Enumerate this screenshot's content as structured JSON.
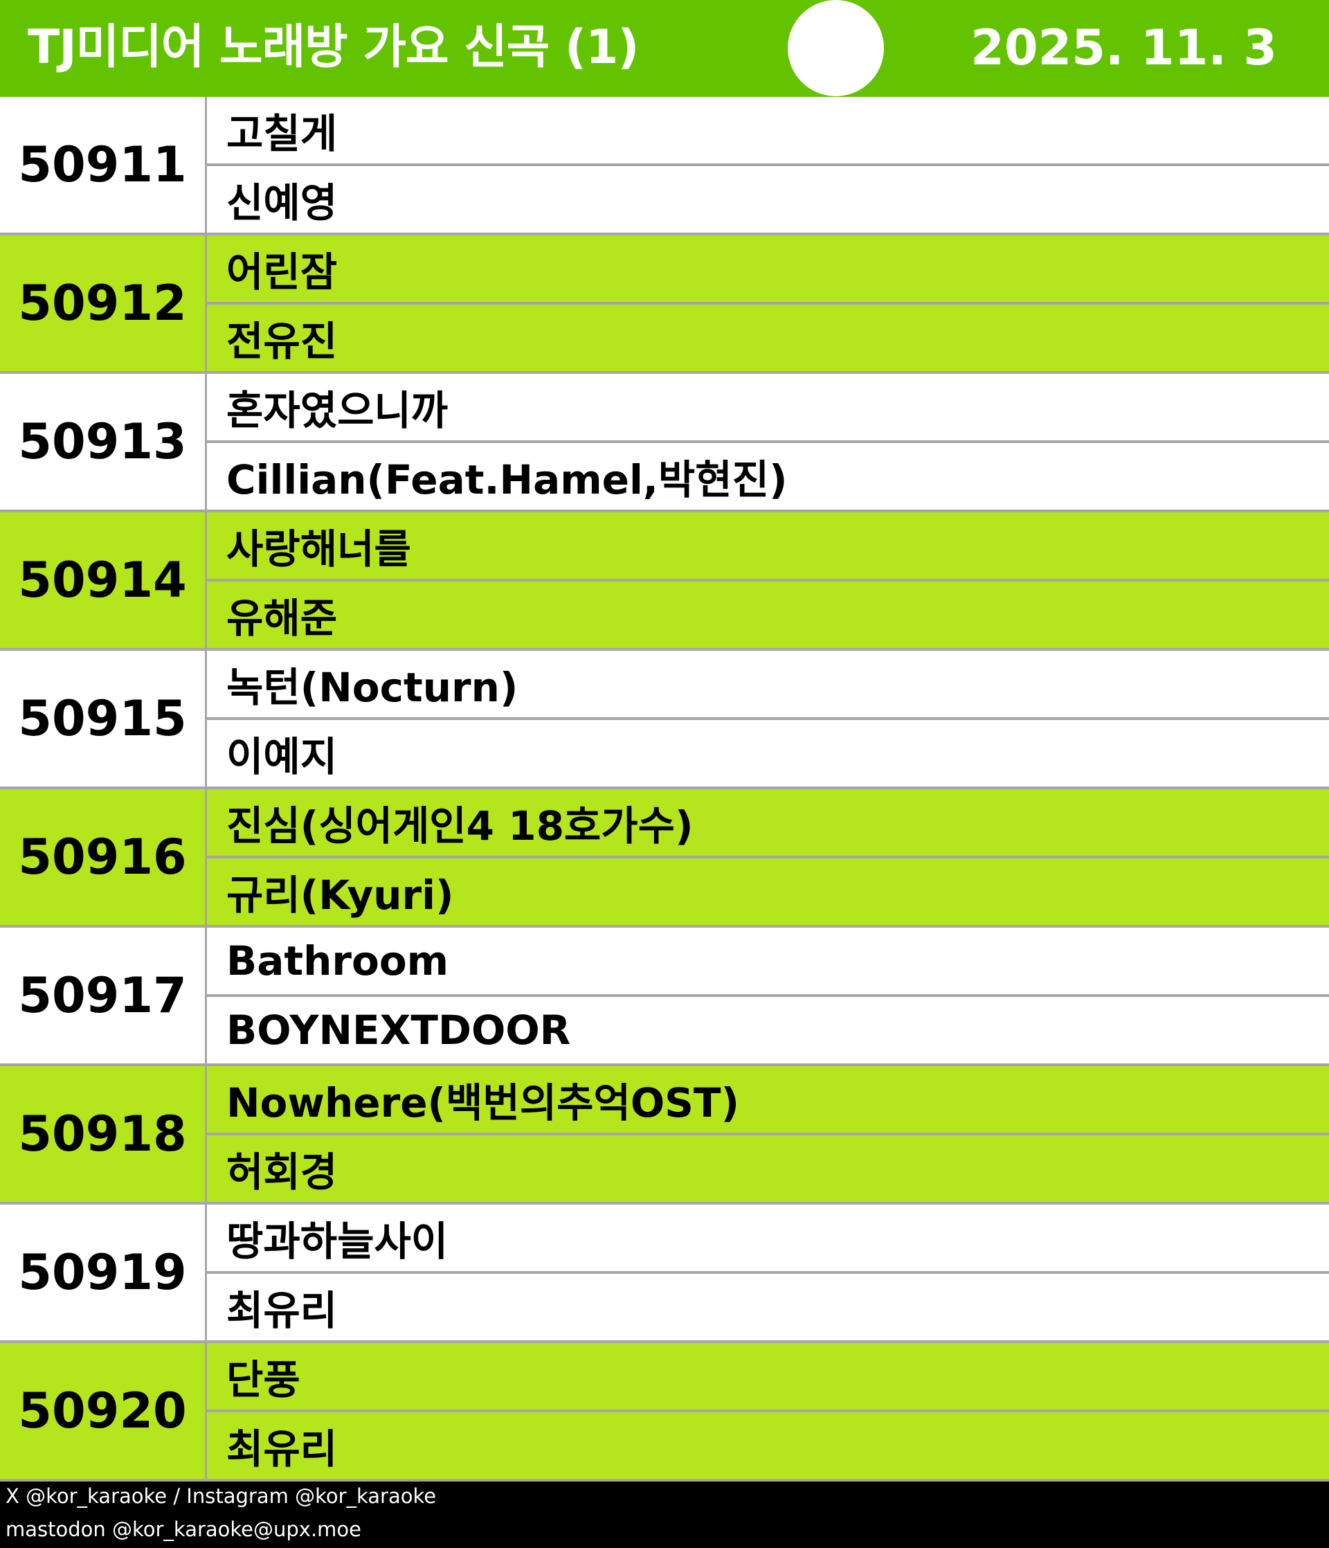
{
  "header": {
    "title": "TJ미디어 노래방 가요 신곡 (1)",
    "date": "2025. 11. 3"
  },
  "colors": {
    "header": "#64c300",
    "highlight": "#b5e61d",
    "divider": "#a6a6a6",
    "footer": "#000000"
  },
  "songs": [
    {
      "number": "50911",
      "title": "고칠게",
      "artist": "신예영"
    },
    {
      "number": "50912",
      "title": "어린잠",
      "artist": "전유진"
    },
    {
      "number": "50913",
      "title": "혼자였으니까",
      "artist": "Cillian(Feat.Hamel,박현진)"
    },
    {
      "number": "50914",
      "title": "사랑해너를",
      "artist": "유해준"
    },
    {
      "number": "50915",
      "title": "녹턴(Nocturn)",
      "artist": "이예지"
    },
    {
      "number": "50916",
      "title": "진심(싱어게인4 18호가수)",
      "artist": "규리(Kyuri)"
    },
    {
      "number": "50917",
      "title": "Bathroom",
      "artist": "BOYNEXTDOOR"
    },
    {
      "number": "50918",
      "title": "Nowhere(백번의추억OST)",
      "artist": "허회경"
    },
    {
      "number": "50919",
      "title": "땅과하늘사이",
      "artist": "최유리"
    },
    {
      "number": "50920",
      "title": "단풍",
      "artist": "최유리"
    }
  ],
  "footer": {
    "line1": "X @kor_karaoke / Instagram @kor_karaoke",
    "line2": "mastodon @kor_karaoke@upx.moe"
  }
}
